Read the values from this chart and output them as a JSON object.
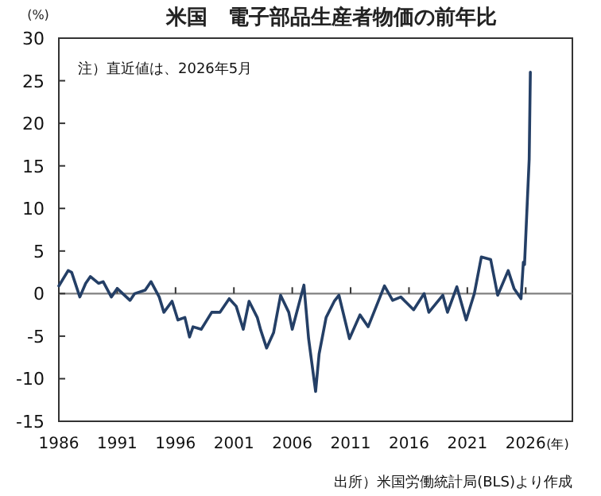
{
  "chart_data": {
    "type": "line",
    "title": "米国　電子部品生産者物価の前年比",
    "ylabel": "(%)",
    "xlabel": "(年)",
    "annotations": [
      "注）直近値は、2026年5月",
      "出所）米国労働統計局(BLS)より作成"
    ],
    "x": [
      1986.0,
      1986.8,
      1987.1,
      1987.8,
      1988.3,
      1988.7,
      1989.4,
      1989.8,
      1990.5,
      1991.0,
      1992.1,
      1992.5,
      1993.4,
      1993.9,
      1994.6,
      1995.0,
      1995.7,
      1996.2,
      1996.8,
      1997.2,
      1997.5,
      1998.2,
      1999.1,
      1999.8,
      2000.6,
      2001.2,
      2001.8,
      2002.3,
      2003.0,
      2003.3,
      2003.8,
      2004.4,
      2005.0,
      2005.7,
      2006.0,
      2007.0,
      2007.4,
      2008.0,
      2008.3,
      2008.9,
      2009.6,
      2010.0,
      2010.9,
      2011.8,
      2012.5,
      2013.9,
      2014.6,
      2015.3,
      2016.4,
      2017.3,
      2017.7,
      2018.9,
      2019.3,
      2020.1,
      2020.9,
      2021.6,
      2022.2,
      2023.0,
      2023.6,
      2024.5,
      2025.0,
      2025.6,
      2025.8,
      2025.9,
      2026.3,
      2026.4
    ],
    "series": [
      {
        "color": "#243f66",
        "values": [
          0.9,
          2.7,
          2.5,
          -0.4,
          1.2,
          2.0,
          1.2,
          1.4,
          -0.4,
          0.6,
          -0.8,
          0.0,
          0.4,
          1.4,
          -0.4,
          -2.2,
          -0.9,
          -3.1,
          -2.8,
          -5.1,
          -3.9,
          -4.2,
          -2.2,
          -2.2,
          -0.6,
          -1.5,
          -4.2,
          -0.9,
          -2.8,
          -4.3,
          -6.4,
          -4.6,
          -0.2,
          -2.2,
          -4.2,
          1.0,
          -5.3,
          -11.5,
          -7.1,
          -2.8,
          -0.9,
          -0.2,
          -5.3,
          -2.5,
          -3.9,
          0.9,
          -0.8,
          -0.4,
          -1.9,
          0.0,
          -2.2,
          -0.2,
          -2.2,
          0.8,
          -3.1,
          0.0,
          4.3,
          4.0,
          -0.2,
          2.7,
          0.6,
          -0.6,
          3.7,
          3.4,
          15.8,
          26.0
        ]
      }
    ],
    "xlim": [
      1986,
      2030
    ],
    "xticks": [
      1986,
      1991,
      1996,
      2001,
      2006,
      2011,
      2016,
      2021,
      2026
    ],
    "ylim": [
      -15,
      30
    ],
    "yticks": [
      -15,
      -10,
      -5,
      0,
      5,
      10,
      15,
      20,
      25,
      30
    ],
    "ref_lines": [
      {
        "axis": "y",
        "value": 0,
        "color": "#808080"
      }
    ],
    "grid": false
  }
}
